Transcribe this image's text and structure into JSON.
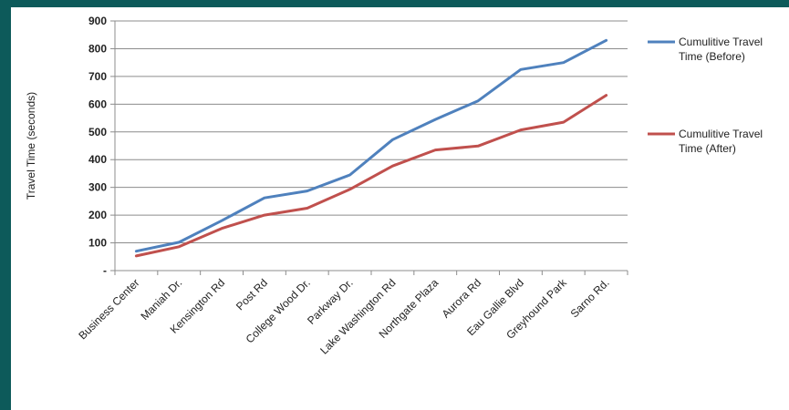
{
  "chart_data": {
    "type": "line",
    "title": "",
    "xlabel": "",
    "ylabel": "Travel Time (seconds)",
    "categories": [
      "Business Center",
      "Maniah Dr.",
      "Kensington Rd",
      "Post Rd",
      "College Wood Dr.",
      "Parkway Dr.",
      "Lake Washington Rd",
      "Northgate Plaza",
      "Aurora Rd",
      "Eau Gallie Blvd",
      "Greyhound Park",
      "Sarno Rd."
    ],
    "ylim": [
      0,
      900
    ],
    "yticks": [
      0,
      100,
      200,
      300,
      400,
      500,
      600,
      700,
      800,
      900
    ],
    "ytick_labels": [
      "-",
      "100",
      "200",
      "300",
      "400",
      "500",
      "600",
      "700",
      "800",
      "900"
    ],
    "grid": true,
    "legend_position": "right",
    "series": [
      {
        "name_line1": "Cumulitive Travel",
        "name_line2": "Time (Before)",
        "color": "#4f81bd",
        "values": [
          70,
          102,
          180,
          262,
          287,
          345,
          472,
          545,
          612,
          725,
          750,
          830
        ]
      },
      {
        "name_line1": "Cumulitive Travel",
        "name_line2": "Time (After)",
        "color": "#c0504d",
        "values": [
          53,
          86,
          152,
          200,
          225,
          293,
          377,
          435,
          449,
          507,
          535,
          632
        ]
      }
    ]
  }
}
